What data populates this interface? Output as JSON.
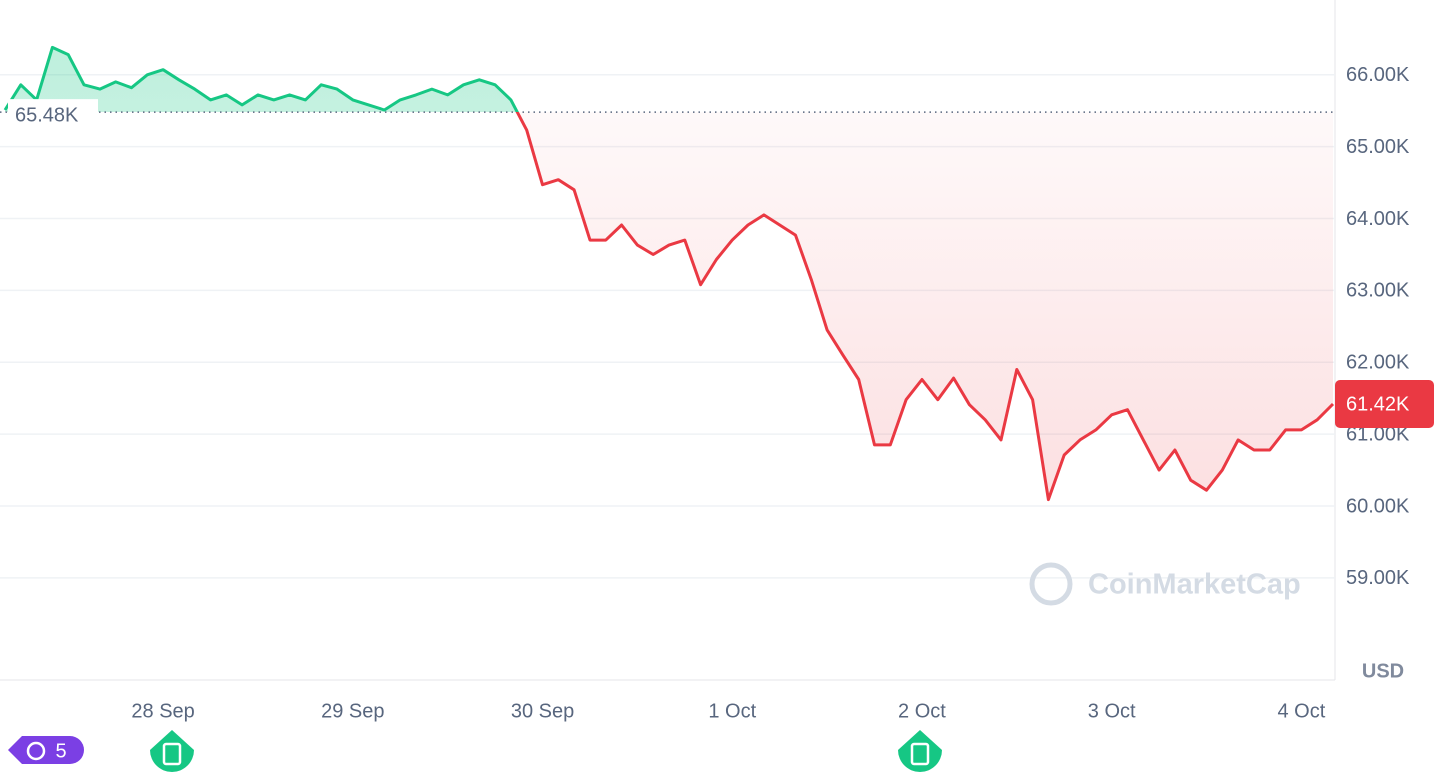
{
  "chart_data": {
    "type": "line",
    "categories": [
      null,
      null,
      null,
      null,
      null,
      null,
      null,
      null,
      null,
      null,
      "28 Sep",
      null,
      null,
      null,
      null,
      null,
      null,
      null,
      null,
      null,
      null,
      null,
      "29 Sep",
      null,
      null,
      null,
      null,
      null,
      null,
      null,
      null,
      null,
      null,
      null,
      "30 Sep",
      null,
      null,
      null,
      null,
      null,
      null,
      null,
      null,
      null,
      null,
      null,
      "1 Oct",
      null,
      null,
      null,
      null,
      null,
      null,
      null,
      null,
      null,
      null,
      null,
      "2 Oct",
      null,
      null,
      null,
      null,
      null,
      null,
      null,
      null,
      null,
      null,
      null,
      "3 Oct",
      null,
      null,
      null,
      null,
      null,
      null,
      null,
      null,
      null,
      null,
      null,
      "4 Oct",
      null,
      null
    ],
    "series": [
      {
        "name": "Price",
        "values": [
          65510,
          65860,
          65650,
          66380,
          66280,
          65860,
          65800,
          65900,
          65820,
          66000,
          66070,
          65930,
          65800,
          65650,
          65720,
          65580,
          65720,
          65650,
          65720,
          65650,
          65860,
          65800,
          65650,
          65580,
          65510,
          65650,
          65720,
          65800,
          65720,
          65860,
          65930,
          65860,
          65650,
          65230,
          64470,
          64540,
          64400,
          63700,
          63700,
          63910,
          63630,
          63500,
          63630,
          63700,
          63080,
          63430,
          63700,
          63910,
          64050,
          63910,
          63770,
          63150,
          62450,
          62100,
          61760,
          60850,
          60850,
          61480,
          61760,
          61480,
          61780,
          61410,
          61200,
          60920,
          61900,
          61480,
          60090,
          60710,
          60920,
          61060,
          61270,
          61340,
          60920,
          60500,
          60780,
          60360,
          60220,
          60500,
          60920,
          60780,
          60780,
          61060,
          61060,
          61200,
          61420
        ]
      }
    ],
    "baseline": {
      "value": 65480,
      "label": "65.48K"
    },
    "current": {
      "value": 61420,
      "label": "61.42K"
    },
    "up_color": "#16c784",
    "down_color": "#ea3943",
    "ylim": [
      57580,
      67040
    ],
    "yticks": [
      {
        "value": 59000,
        "label": "59.00K"
      },
      {
        "value": 60000,
        "label": "60.00K"
      },
      {
        "value": 61000,
        "label": "61.00K"
      },
      {
        "value": 62000,
        "label": "62.00K"
      },
      {
        "value": 63000,
        "label": "63.00K"
      },
      {
        "value": 64000,
        "label": "64.00K"
      },
      {
        "value": 65000,
        "label": "65.00K"
      },
      {
        "value": 66000,
        "label": "66.00K"
      }
    ],
    "y_label": "USD",
    "watermark": "CoinMarketCap",
    "badge": "5",
    "grid": true
  }
}
